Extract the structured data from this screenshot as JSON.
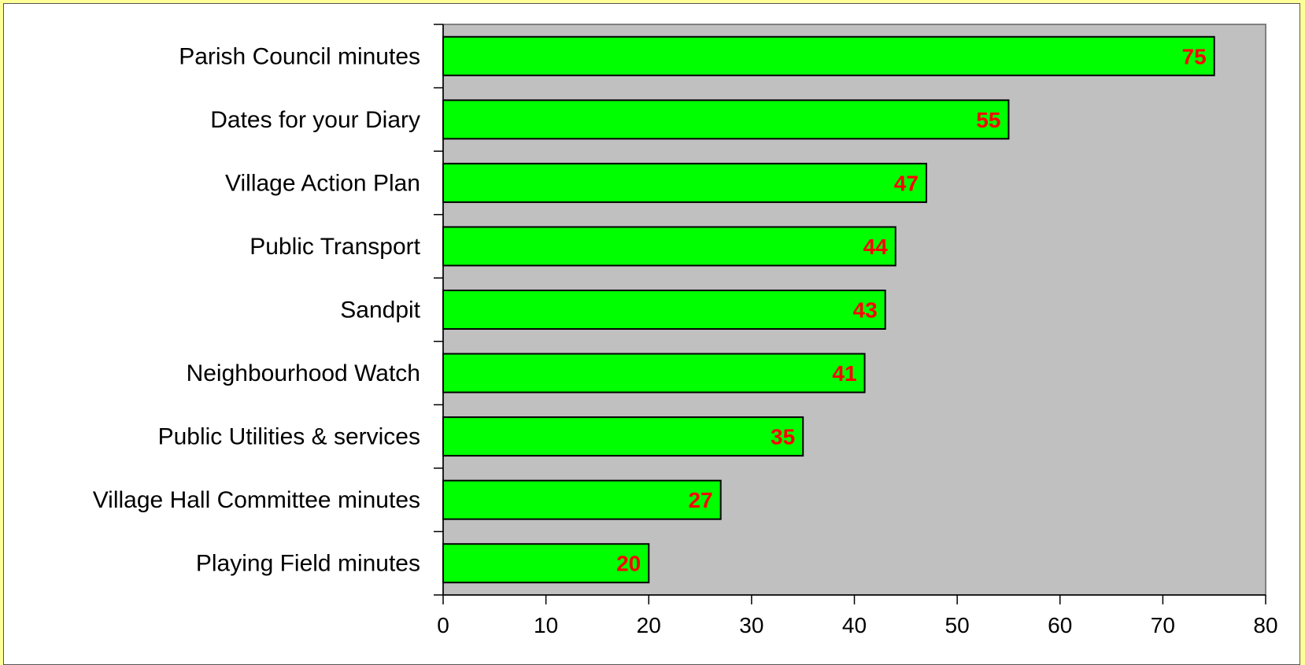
{
  "chart_data": {
    "type": "bar",
    "orientation": "horizontal",
    "categories": [
      "Parish Council minutes",
      "Dates for your Diary",
      "Village Action Plan",
      "Public Transport",
      "Sandpit",
      "Neighbourhood Watch",
      "Public Utilities & services",
      "Village Hall Committee minutes",
      "Playing Field minutes"
    ],
    "values": [
      75,
      55,
      47,
      44,
      43,
      41,
      35,
      27,
      20
    ],
    "xlim": [
      0,
      80
    ],
    "xticks": [
      0,
      10,
      20,
      30,
      40,
      50,
      60,
      70,
      80
    ],
    "title": "",
    "xlabel": "",
    "ylabel": "",
    "grid": false,
    "legend": "none",
    "data_labels": "inside-end",
    "colors": {
      "bar_fill": "#00ff00",
      "bar_stroke": "#000000",
      "plot_background": "#c0c0c0",
      "data_label": "#ff0000",
      "page_background": "#ffff99",
      "chart_background": "#ffffff"
    }
  }
}
